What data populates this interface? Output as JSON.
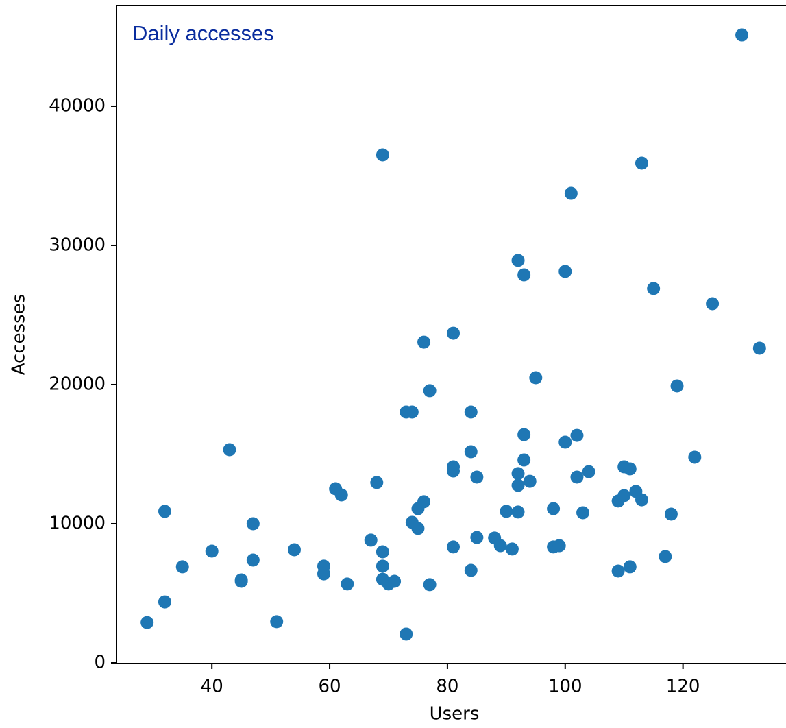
{
  "chart_data": {
    "type": "scatter",
    "title": "Daily accesses",
    "x_label": "Users",
    "y_label": "Accesses",
    "color": "#1f77b4",
    "title_color": "#0a2d9e",
    "x": [
      29,
      32,
      32,
      35,
      40,
      43,
      45,
      45,
      47,
      47,
      51,
      54,
      59,
      59,
      61,
      62,
      63,
      67,
      68,
      69,
      69,
      69,
      69,
      70,
      71,
      73,
      73,
      74,
      74,
      75,
      75,
      76,
      76,
      77,
      77,
      81,
      81,
      81,
      81,
      84,
      84,
      84,
      85,
      85,
      88,
      89,
      90,
      91,
      92,
      92,
      92,
      92,
      93,
      93,
      93,
      94,
      95,
      98,
      98,
      99,
      100,
      100,
      101,
      102,
      102,
      103,
      104,
      109,
      109,
      110,
      110,
      111,
      111,
      112,
      113,
      113,
      115,
      117,
      118,
      119,
      122,
      125,
      130,
      133
    ],
    "values": [
      2900,
      4380,
      10890,
      6900,
      8030,
      15320,
      5960,
      5860,
      10000,
      7390,
      2960,
      8130,
      6950,
      6400,
      12510,
      12070,
      5670,
      8820,
      12960,
      36500,
      7980,
      6950,
      6010,
      5670,
      5860,
      2070,
      18030,
      18030,
      10100,
      11080,
      9660,
      11580,
      23050,
      19560,
      5620,
      23690,
      14090,
      13790,
      8330,
      18030,
      15170,
      6650,
      13350,
      9010,
      8970,
      8420,
      10890,
      8180,
      28920,
      13600,
      12760,
      10840,
      27880,
      16400,
      14580,
      13050,
      20490,
      11080,
      8330,
      8420,
      28130,
      15860,
      33740,
      16350,
      13350,
      10790,
      13740,
      11630,
      6600,
      14090,
      12020,
      13940,
      6900,
      12320,
      35910,
      11720,
      26900,
      7640,
      10690,
      19900,
      14780,
      25810,
      45120,
      22610
    ],
    "xlim": [
      23.8,
      137.5
    ],
    "ylim": [
      -50,
      47240
    ],
    "xticks": [
      40,
      60,
      80,
      100,
      120
    ],
    "yticks": [
      0,
      10000,
      20000,
      30000,
      40000
    ]
  }
}
